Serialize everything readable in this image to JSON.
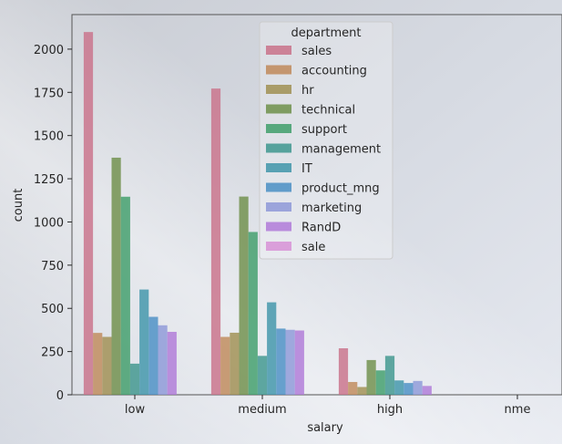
{
  "chart_data": {
    "type": "bar",
    "xlabel": "salary",
    "ylabel": "count",
    "categories": [
      "low",
      "medium",
      "high",
      "nme"
    ],
    "ylim": [
      0,
      2200
    ],
    "yticks": [
      0,
      250,
      500,
      750,
      1000,
      1250,
      1500,
      1750,
      2000
    ],
    "legend": {
      "title": "department",
      "placement": "top-center"
    },
    "series": [
      {
        "name": "sales",
        "color": "#c9728a",
        "values": [
          2099,
          1772,
          269,
          0
        ]
      },
      {
        "name": "accounting",
        "color": "#c08a5a",
        "values": [
          358,
          335,
          74,
          0
        ]
      },
      {
        "name": "hr",
        "color": "#a08f52",
        "values": [
          335,
          359,
          45,
          0
        ]
      },
      {
        "name": "technical",
        "color": "#6f8f4a",
        "values": [
          1372,
          1147,
          201,
          0
        ]
      },
      {
        "name": "support",
        "color": "#3f9d6a",
        "values": [
          1146,
          942,
          141,
          0
        ]
      },
      {
        "name": "management",
        "color": "#3e968e",
        "values": [
          180,
          225,
          225,
          0
        ]
      },
      {
        "name": "IT",
        "color": "#3f95a9",
        "values": [
          609,
          535,
          83,
          0
        ]
      },
      {
        "name": "product_mng",
        "color": "#4a8fc4",
        "values": [
          451,
          383,
          68,
          0
        ]
      },
      {
        "name": "marketing",
        "color": "#8e98d8",
        "values": [
          402,
          376,
          80,
          0
        ]
      },
      {
        "name": "RandD",
        "color": "#b07ad8",
        "values": [
          364,
          372,
          51,
          0
        ]
      },
      {
        "name": "sale",
        "color": "#d792d6",
        "values": [
          0,
          0,
          0,
          0
        ]
      }
    ],
    "grid": false
  }
}
